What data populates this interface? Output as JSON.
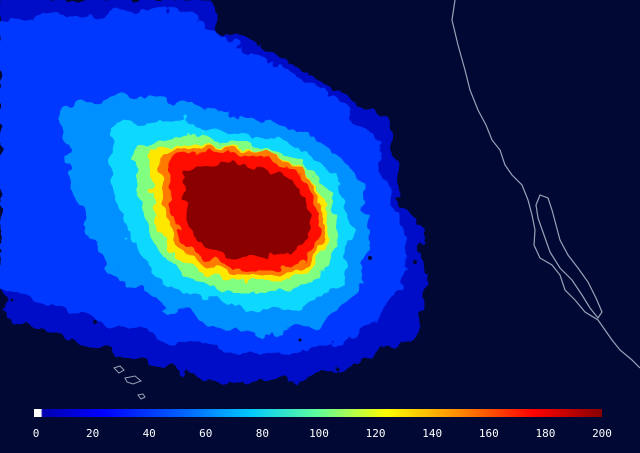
{
  "colors": {
    "background": "#000833",
    "coastline": "#9aa2b8",
    "colormap": [
      "#ffffff",
      "#0000b0",
      "#0000ff",
      "#0060ff",
      "#00c8ff",
      "#60ff9a",
      "#ffff00",
      "#ff8800",
      "#ff0000",
      "#880000"
    ]
  },
  "colorbar": {
    "min": 0,
    "max": 200,
    "ticks": [
      "0",
      "20",
      "40",
      "60",
      "80",
      "100",
      "120",
      "140",
      "160",
      "180",
      "200"
    ]
  },
  "map": {
    "features": [
      "plume-field",
      "coastline"
    ]
  }
}
